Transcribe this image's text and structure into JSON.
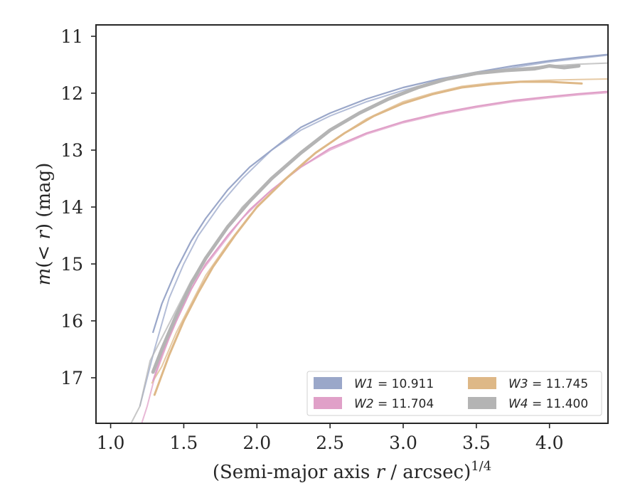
{
  "chart_data": {
    "type": "line",
    "title": "",
    "xlabel": {
      "main": "(Semi-major axis ",
      "var": "r",
      "rest": " / arcsec)",
      "sup": "1/4"
    },
    "ylabel": {
      "main": "m",
      "rest": "(< ",
      "var": "r",
      "close": ") (mag)"
    },
    "xlim": [
      0.9,
      4.4
    ],
    "ylim": [
      17.8,
      10.8
    ],
    "y_inverted": true,
    "xticks": [
      1.0,
      1.5,
      2.0,
      2.5,
      3.0,
      3.5,
      4.0
    ],
    "xtick_labels": [
      "1.0",
      "1.5",
      "2.0",
      "2.5",
      "3.0",
      "3.5",
      "4.0"
    ],
    "yticks": [
      11,
      12,
      13,
      14,
      15,
      16,
      17
    ],
    "ytick_labels": [
      "11",
      "12",
      "13",
      "14",
      "15",
      "16",
      "17"
    ],
    "grid": false,
    "legend_position": "bottom-right",
    "legend_columns": 2,
    "series": [
      {
        "name": "W1 = 10.911",
        "band": "W1",
        "value": "10.911",
        "color": "#9aa7c9",
        "thick_line": [
          [
            1.29,
            16.2
          ],
          [
            1.35,
            15.7
          ],
          [
            1.45,
            15.1
          ],
          [
            1.55,
            14.6
          ],
          [
            1.65,
            14.2
          ],
          [
            1.8,
            13.7
          ],
          [
            1.95,
            13.3
          ],
          [
            2.1,
            13.0
          ],
          [
            2.3,
            12.6
          ],
          [
            2.5,
            12.35
          ],
          [
            2.75,
            12.1
          ],
          [
            3.0,
            11.9
          ],
          [
            3.25,
            11.75
          ],
          [
            3.5,
            11.63
          ],
          [
            3.75,
            11.52
          ],
          [
            4.0,
            11.43
          ],
          [
            4.2,
            11.37
          ],
          [
            4.4,
            11.32
          ]
        ],
        "thin_line": [
          [
            1.2,
            17.5
          ],
          [
            1.3,
            16.5
          ],
          [
            1.4,
            15.6
          ],
          [
            1.5,
            15.0
          ],
          [
            1.6,
            14.5
          ],
          [
            1.75,
            13.95
          ],
          [
            1.9,
            13.5
          ],
          [
            2.1,
            13.0
          ],
          [
            2.3,
            12.65
          ],
          [
            2.5,
            12.4
          ],
          [
            2.75,
            12.15
          ],
          [
            3.0,
            11.95
          ],
          [
            3.25,
            11.78
          ],
          [
            3.5,
            11.65
          ],
          [
            3.75,
            11.55
          ],
          [
            4.0,
            11.45
          ],
          [
            4.2,
            11.39
          ],
          [
            4.4,
            11.33
          ]
        ]
      },
      {
        "name": "W2 = 11.704",
        "band": "W2",
        "value": "11.704",
        "color": "#e0a0c8",
        "thick_line": [
          [
            1.29,
            17.05
          ],
          [
            1.35,
            16.6
          ],
          [
            1.45,
            16.0
          ],
          [
            1.55,
            15.45
          ],
          [
            1.65,
            15.0
          ],
          [
            1.8,
            14.5
          ],
          [
            1.95,
            14.05
          ],
          [
            2.1,
            13.7
          ],
          [
            2.3,
            13.3
          ],
          [
            2.5,
            12.97
          ],
          [
            2.75,
            12.7
          ],
          [
            3.0,
            12.5
          ],
          [
            3.25,
            12.35
          ],
          [
            3.5,
            12.23
          ],
          [
            3.75,
            12.13
          ],
          [
            4.0,
            12.06
          ],
          [
            4.2,
            12.01
          ],
          [
            4.4,
            11.97
          ]
        ],
        "thin_line": [
          [
            1.2,
            17.9
          ],
          [
            1.25,
            17.5
          ],
          [
            1.3,
            17.0
          ],
          [
            1.4,
            16.3
          ],
          [
            1.5,
            15.7
          ],
          [
            1.6,
            15.2
          ],
          [
            1.75,
            14.7
          ],
          [
            1.9,
            14.2
          ],
          [
            2.1,
            13.7
          ],
          [
            2.3,
            13.3
          ],
          [
            2.5,
            13.0
          ],
          [
            2.75,
            12.72
          ],
          [
            3.0,
            12.52
          ],
          [
            3.25,
            12.37
          ],
          [
            3.5,
            12.25
          ],
          [
            3.75,
            12.15
          ],
          [
            4.0,
            12.08
          ],
          [
            4.2,
            12.03
          ],
          [
            4.4,
            11.99
          ]
        ]
      },
      {
        "name": "W3 = 11.745",
        "band": "W3",
        "value": "11.745",
        "color": "#deb887",
        "thick_line": [
          [
            1.3,
            17.3
          ],
          [
            1.4,
            16.6
          ],
          [
            1.5,
            16.0
          ],
          [
            1.6,
            15.5
          ],
          [
            1.7,
            15.05
          ],
          [
            1.85,
            14.5
          ],
          [
            2.0,
            14.0
          ],
          [
            2.2,
            13.5
          ],
          [
            2.4,
            13.05
          ],
          [
            2.6,
            12.7
          ],
          [
            2.8,
            12.4
          ],
          [
            3.0,
            12.18
          ],
          [
            3.2,
            12.02
          ],
          [
            3.4,
            11.9
          ],
          [
            3.6,
            11.84
          ],
          [
            3.8,
            11.8
          ],
          [
            4.0,
            11.8
          ],
          [
            4.22,
            11.83
          ]
        ],
        "thin_line": [
          [
            1.28,
            17.1
          ],
          [
            1.35,
            16.8
          ],
          [
            1.45,
            16.2
          ],
          [
            1.55,
            15.7
          ],
          [
            1.65,
            15.2
          ],
          [
            1.8,
            14.65
          ],
          [
            1.95,
            14.15
          ],
          [
            2.15,
            13.6
          ],
          [
            2.35,
            13.15
          ],
          [
            2.55,
            12.78
          ],
          [
            2.75,
            12.45
          ],
          [
            3.0,
            12.15
          ],
          [
            3.2,
            12.0
          ],
          [
            3.4,
            11.88
          ],
          [
            3.6,
            11.82
          ],
          [
            3.8,
            11.79
          ],
          [
            4.0,
            11.77
          ],
          [
            4.2,
            11.76
          ],
          [
            4.4,
            11.75
          ]
        ]
      },
      {
        "name": "W4 = 11.400",
        "band": "W4",
        "value": "11.400",
        "color": "#b4b4b4",
        "thick_line": [
          [
            1.29,
            16.9
          ],
          [
            1.35,
            16.5
          ],
          [
            1.45,
            15.9
          ],
          [
            1.55,
            15.35
          ],
          [
            1.65,
            14.9
          ],
          [
            1.8,
            14.35
          ],
          [
            1.95,
            13.9
          ],
          [
            2.1,
            13.5
          ],
          [
            2.3,
            13.05
          ],
          [
            2.5,
            12.65
          ],
          [
            2.7,
            12.35
          ],
          [
            2.9,
            12.1
          ],
          [
            3.1,
            11.9
          ],
          [
            3.3,
            11.75
          ],
          [
            3.5,
            11.65
          ],
          [
            3.7,
            11.6
          ],
          [
            3.9,
            11.57
          ],
          [
            4.0,
            11.52
          ],
          [
            4.1,
            11.55
          ],
          [
            4.2,
            11.52
          ]
        ],
        "thin_line": [
          [
            1.1,
            18.0
          ],
          [
            1.2,
            17.5
          ],
          [
            1.27,
            16.7
          ],
          [
            1.35,
            16.3
          ],
          [
            1.45,
            15.8
          ],
          [
            1.55,
            15.3
          ],
          [
            1.7,
            14.7
          ],
          [
            1.9,
            14.0
          ],
          [
            2.1,
            13.5
          ],
          [
            2.3,
            13.05
          ],
          [
            2.5,
            12.65
          ],
          [
            2.75,
            12.3
          ],
          [
            3.0,
            12.0
          ],
          [
            3.25,
            11.78
          ],
          [
            3.5,
            11.65
          ],
          [
            3.75,
            11.57
          ],
          [
            4.0,
            11.52
          ],
          [
            4.2,
            11.49
          ],
          [
            4.4,
            11.47
          ]
        ]
      }
    ]
  }
}
